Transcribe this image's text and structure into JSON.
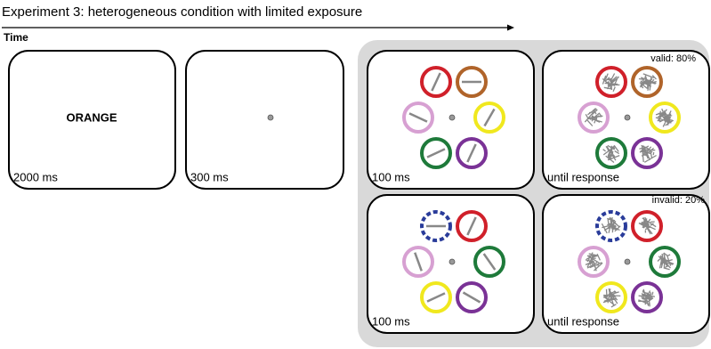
{
  "title": "Experiment 3: heterogeneous condition with limited exposure",
  "time_label": "Time",
  "panels": [
    {
      "word": "ORANGE",
      "duration": "2000 ms"
    },
    {
      "duration": "300 ms"
    },
    {
      "duration": "100 ms"
    },
    {
      "duration": "until response",
      "cue": "valid: 80%"
    },
    {
      "duration": "100 ms"
    },
    {
      "duration": "until response",
      "cue": "invalid: 20%"
    }
  ]
}
